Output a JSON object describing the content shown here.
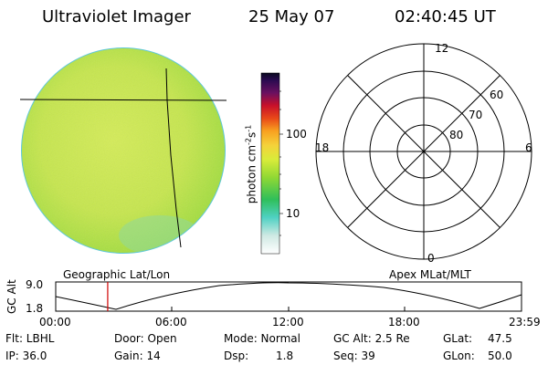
{
  "header": {
    "instrument": "Ultraviolet Imager",
    "date": "25 May 07",
    "time": "02:40:45 UT"
  },
  "colorbar": {
    "unit_label": "photon cm",
    "unit_sup1": "-2",
    "unit_s": "s",
    "unit_sup2": "-1",
    "tick_labels": [
      "100",
      "10"
    ]
  },
  "polar_plot": {
    "mlt_labels": {
      "top": "12",
      "left": "18",
      "right": "6",
      "bottom": "0"
    },
    "lat_labels": [
      "60",
      "70",
      "80"
    ]
  },
  "timeline": {
    "axis_label": "GC Alt",
    "y_ticks": [
      "9.0",
      "1.8"
    ],
    "left_title": "Geographic Lat/Lon",
    "right_title": "Apex MLat/MLT",
    "x_ticks": [
      "00:00",
      "06:00",
      "12:00",
      "18:00",
      "23:59"
    ],
    "marker_time": "02:40:45",
    "marker_color": "#d00000"
  },
  "info": {
    "flt": "Flt: LBHL",
    "ip": "IP: 36.0",
    "door": "Door: Open",
    "gain": "Gain: 14",
    "mode": "Mode: Normal",
    "dsp_label": "Dsp:",
    "dsp_value": "1.8",
    "gc_alt": "GC Alt: 2.5 Re",
    "seq": "Seq: 39",
    "glat_label": "GLat:",
    "glat_value": "47.5",
    "glon_label": "GLon:",
    "glon_value": "50.0"
  }
}
